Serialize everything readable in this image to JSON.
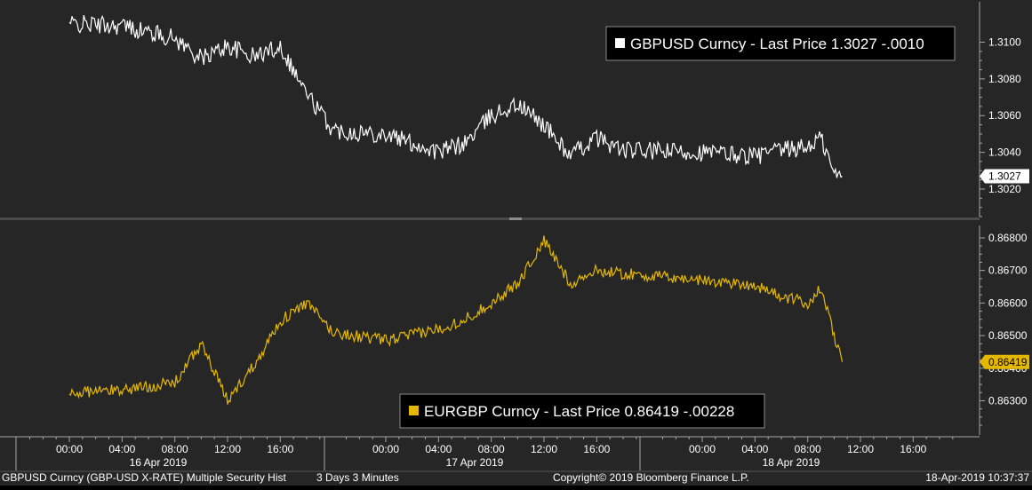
{
  "chart_data": [
    {
      "type": "line",
      "series": [
        {
          "name": "GBPUSD Curncy - Last Price 1.3027  -.0010",
          "color": "#ffffff",
          "x": [
            "16 Apr 2019 00:00",
            "16 Apr 2019 04:00",
            "16 Apr 2019 08:00",
            "16 Apr 2019 10:00",
            "16 Apr 2019 12:00",
            "16 Apr 2019 14:00",
            "16 Apr 2019 16:00",
            "16 Apr 2019 18:00",
            "16 Apr 2019 20:00",
            "17 Apr 2019 00:00",
            "17 Apr 2019 04:00",
            "17 Apr 2019 06:00",
            "17 Apr 2019 08:00",
            "17 Apr 2019 10:00",
            "17 Apr 2019 12:00",
            "17 Apr 2019 14:00",
            "17 Apr 2019 16:00",
            "17 Apr 2019 18:00",
            "18 Apr 2019 00:00",
            "18 Apr 2019 04:00",
            "18 Apr 2019 06:00",
            "18 Apr 2019 08:00",
            "18 Apr 2019 09:00",
            "18 Apr 2019 10:00",
            "18 Apr 2019 10:37"
          ],
          "values": [
            1.311,
            1.3109,
            1.3102,
            1.3091,
            1.3098,
            1.3092,
            1.3098,
            1.3072,
            1.3052,
            1.305,
            1.304,
            1.3045,
            1.306,
            1.3066,
            1.3055,
            1.3038,
            1.3048,
            1.3041,
            1.304,
            1.3038,
            1.3041,
            1.3043,
            1.3048,
            1.3028,
            1.3027
          ]
        }
      ],
      "ylim": [
        1.3005,
        1.3122
      ],
      "y_ticks": [
        "1.3100",
        "1.3080",
        "1.3060",
        "1.3040",
        "1.3020"
      ],
      "last_value_label": "1.3027",
      "grid": false,
      "legend_position": "top-right"
    },
    {
      "type": "line",
      "series": [
        {
          "name": "EURGBP Curncy - Last Price 0.86419  -.00228",
          "color": "#e5b800",
          "x": [
            "16 Apr 2019 00:00",
            "16 Apr 2019 04:00",
            "16 Apr 2019 08:00",
            "16 Apr 2019 10:00",
            "16 Apr 2019 12:00",
            "16 Apr 2019 14:00",
            "16 Apr 2019 16:00",
            "16 Apr 2019 18:00",
            "16 Apr 2019 20:00",
            "17 Apr 2019 00:00",
            "17 Apr 2019 04:00",
            "17 Apr 2019 06:00",
            "17 Apr 2019 08:00",
            "17 Apr 2019 10:00",
            "17 Apr 2019 12:00",
            "17 Apr 2019 14:00",
            "17 Apr 2019 16:00",
            "17 Apr 2019 18:00",
            "18 Apr 2019 00:00",
            "18 Apr 2019 04:00",
            "18 Apr 2019 06:00",
            "18 Apr 2019 08:00",
            "18 Apr 2019 09:00",
            "18 Apr 2019 10:00",
            "18 Apr 2019 10:37"
          ],
          "values": [
            0.86325,
            0.86334,
            0.86355,
            0.86475,
            0.863,
            0.8641,
            0.86545,
            0.866,
            0.8651,
            0.86485,
            0.8652,
            0.8655,
            0.866,
            0.8666,
            0.8679,
            0.8666,
            0.867,
            0.8669,
            0.8667,
            0.86655,
            0.8662,
            0.866,
            0.86645,
            0.865,
            0.86419
          ]
        }
      ],
      "ylim": [
        0.86195,
        0.86838
      ],
      "y_ticks": [
        "0.86800",
        "0.86700",
        "0.86600",
        "0.86500",
        "0.86400",
        "0.86300"
      ],
      "last_value_label": "0.86419",
      "grid": false,
      "legend_position": "bottom-center"
    }
  ],
  "x_axis": {
    "time_ticks": [
      "00:00",
      "04:00",
      "08:00",
      "12:00",
      "16:00",
      "00:00",
      "04:00",
      "08:00",
      "12:00",
      "16:00",
      "00:00",
      "04:00",
      "08:00",
      "12:00",
      "16:00"
    ],
    "day_labels": [
      "16 Apr 2019",
      "17 Apr 2019",
      "18 Apr 2019"
    ]
  },
  "footer": {
    "security": "GBPUSD Curncy (GBP-USD X-RATE) Multiple Security Hist",
    "period": "3 Days 3 Minutes",
    "copyright": "Copyright© 2019 Bloomberg Finance L.P.",
    "timestamp": "18-Apr-2019 10:37:37"
  },
  "colors": {
    "background": "#262626",
    "gbp_line": "#ffffff",
    "eur_line": "#e5b800",
    "axis": "#a6a6a6",
    "text": "#ffffff"
  }
}
